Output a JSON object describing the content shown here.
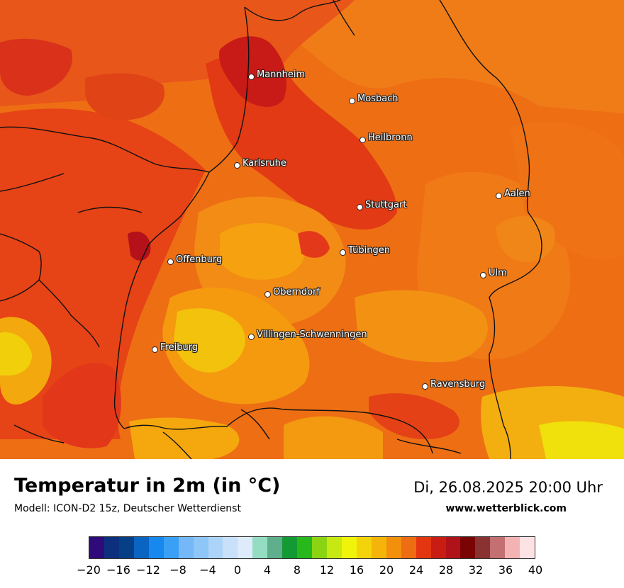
{
  "title": "Temperatur in 2m (in °C)",
  "subtitle": "Modell: ICON-D2 15z, Deutscher Wetterdienst",
  "datetime": "Di, 26.08.2025 20:00 Uhr",
  "website": "www.wetterblick.com",
  "cities": [
    {
      "name": "Mannheim"
    },
    {
      "name": "Mosbach"
    },
    {
      "name": "Heilbronn"
    },
    {
      "name": "Karlsruhe"
    },
    {
      "name": "Aalen"
    },
    {
      "name": "Stuttgart"
    },
    {
      "name": "Tübingen"
    },
    {
      "name": "Offenburg"
    },
    {
      "name": "Ulm"
    },
    {
      "name": "Oberndorf"
    },
    {
      "name": "Villingen-Schwenningen"
    },
    {
      "name": "Freiburg"
    },
    {
      "name": "Ravensburg"
    }
  ],
  "legend": {
    "unit": "°C",
    "ticks": [
      "−20",
      "−16",
      "−12",
      "−8",
      "−4",
      "0",
      "4",
      "8",
      "12",
      "16",
      "20",
      "24",
      "28",
      "32",
      "36",
      "40"
    ],
    "colors": [
      "#2e0a7a",
      "#0c2f7e",
      "#063f86",
      "#0a64c2",
      "#1688ee",
      "#3aa0f5",
      "#74b8f7",
      "#8ec6f8",
      "#acd3f8",
      "#c8e0fa",
      "#ddebfb",
      "#94dcc2",
      "#5fae8c",
      "#149a34",
      "#27b81c",
      "#8ad414",
      "#c8e812",
      "#f0f30a",
      "#f3d40a",
      "#f4b40a",
      "#f2900b",
      "#ee6c12",
      "#e33610",
      "#c91d13",
      "#b0121a",
      "#7a0404",
      "#8a3232",
      "#c46f72",
      "#f3b3b3",
      "#fde2e4"
    ]
  }
}
